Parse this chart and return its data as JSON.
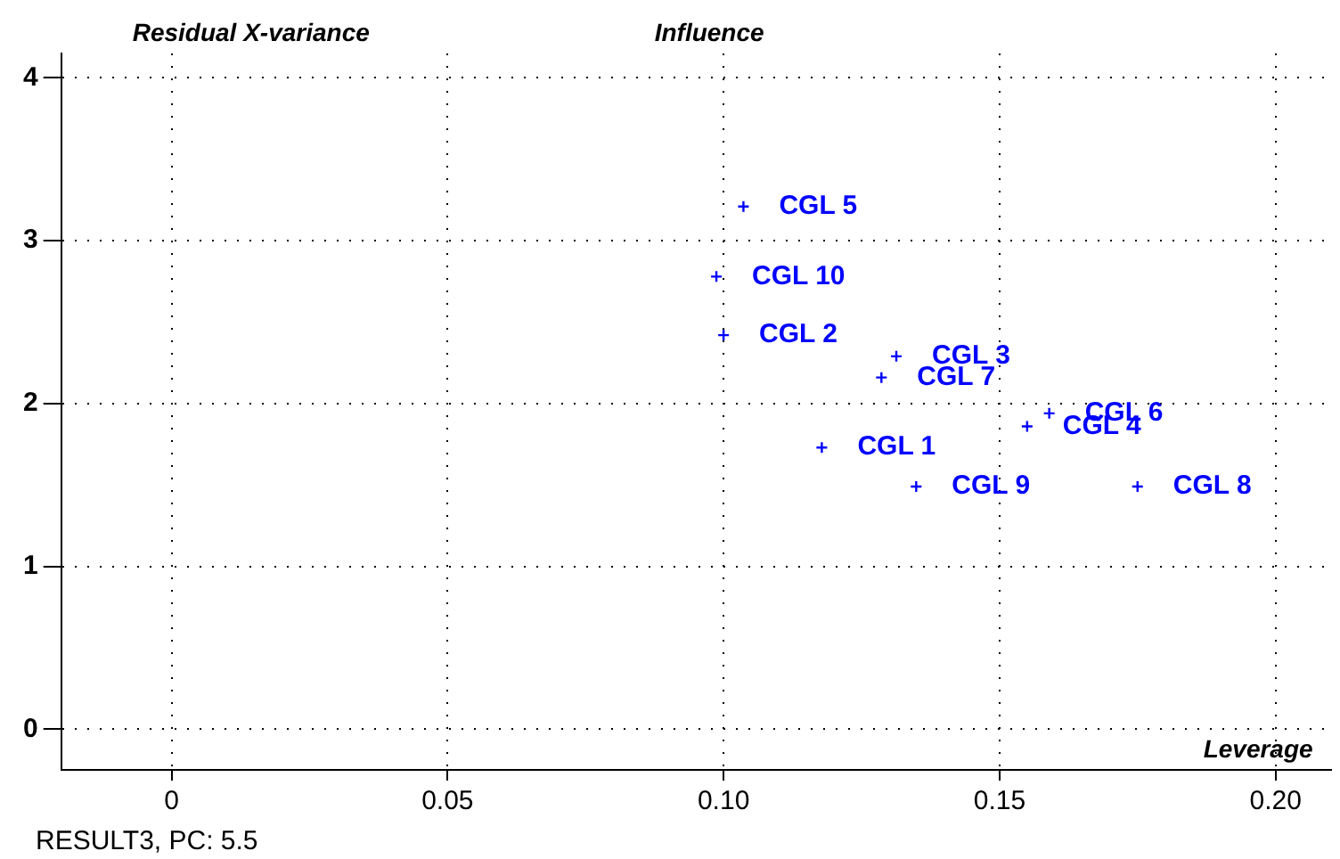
{
  "chart_data": {
    "type": "scatter",
    "title": "Influence",
    "ylabel": "Residual X-variance",
    "xlabel": "Leverage",
    "x": [
      0.1036,
      0.0987,
      0.1,
      0.1313,
      0.1286,
      0.1178,
      0.1349,
      0.155,
      0.159,
      0.175
    ],
    "series": [
      {
        "color": "#0000ff",
        "values": [
          3.21,
          2.78,
          2.42,
          2.29,
          2.16,
          1.73,
          1.49,
          1.86,
          1.94,
          1.49
        ]
      }
    ],
    "xlim": [
      -0.02,
      0.21
    ],
    "ylim": [
      -0.25,
      4.15
    ],
    "xticks": [
      {
        "value": 0,
        "label": "0"
      },
      0.05,
      {
        "value": 0.1,
        "label": "0.10"
      },
      0.15,
      {
        "value": 0.2,
        "label": "0.20"
      }
    ],
    "yticks": [
      0,
      1,
      2,
      3,
      4
    ],
    "grid": true,
    "marker": "cross",
    "legend": false,
    "annotations": [
      {
        "text": "CGL 5",
        "x": 0.1036,
        "y": 3.21
      },
      {
        "text": "CGL 10",
        "x": 0.0987,
        "y": 2.78
      },
      {
        "text": "CGL 2",
        "x": 0.1,
        "y": 2.42
      },
      {
        "text": "CGL 3",
        "x": 0.1313,
        "y": 2.29
      },
      {
        "text": "CGL 7",
        "x": 0.1286,
        "y": 2.16
      },
      {
        "text": "CGL 1",
        "x": 0.1178,
        "y": 1.73
      },
      {
        "text": "CGL 9",
        "x": 0.1349,
        "y": 1.49
      },
      {
        "text": "CGL 4",
        "x": 0.155,
        "y": 1.86
      },
      {
        "text": "CGL 6",
        "x": 0.159,
        "y": 1.94
      },
      {
        "text": "CGL 8",
        "x": 0.175,
        "y": 1.49
      },
      "RESULT3, PC: 5.5"
    ]
  }
}
